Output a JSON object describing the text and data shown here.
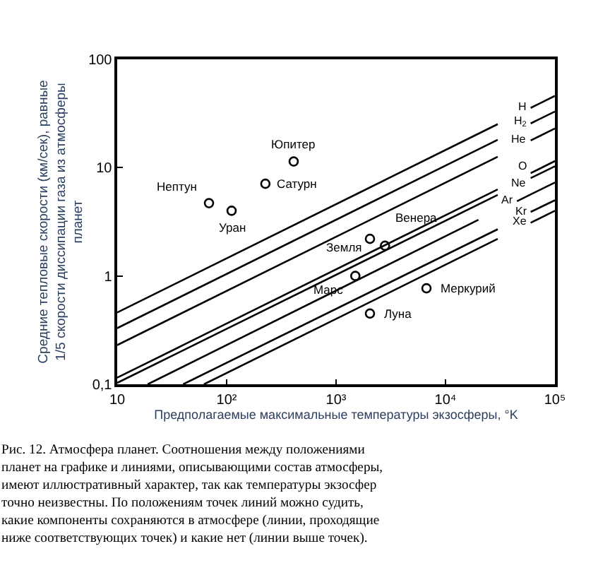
{
  "chart_data": {
    "type": "line",
    "xlabel": "Предполагаемые максимальные температуры экзосферы, °K",
    "ylabel": "Средние тепловые скорости (км/сек), равные 1/5 скорости диссипации газа из атмосферы планет",
    "log": "xy",
    "grid": false,
    "legend": false,
    "line_style": "solid",
    "xlim": [
      10,
      100000
    ],
    "ylim": [
      0.1,
      100
    ],
    "xticks": [
      {
        "value": 10,
        "label": "10"
      },
      {
        "value": 100,
        "label": "10²"
      },
      {
        "value": 1000,
        "label": "10³"
      },
      {
        "value": 10000,
        "label": "10⁴"
      },
      {
        "value": 100000,
        "label": "10⁵"
      }
    ],
    "yticks": [
      {
        "value": 0.1,
        "label": "0,1"
      },
      1,
      10,
      100
    ],
    "series": [
      {
        "name": "H",
        "color": "#000000",
        "x": [
          10,
          30000,
          null,
          60000,
          100000
        ],
        "values": [
          0.46,
          25.2,
          null,
          35.6,
          46
        ]
      },
      {
        "name": "H$_{2}$",
        "color": "#000000",
        "x": [
          10,
          30000,
          null,
          60000,
          100000
        ],
        "values": [
          0.33,
          18.1,
          null,
          25.6,
          33
        ]
      },
      {
        "name": "He",
        "color": "#000000",
        "x": [
          10,
          30000,
          null,
          60000,
          100000
        ],
        "values": [
          0.23,
          12.6,
          null,
          17.8,
          23
        ]
      },
      {
        "name": "O",
        "color": "#000000",
        "x": [
          10,
          30000,
          null,
          60000,
          100000
        ],
        "values": [
          0.115,
          6.3,
          null,
          8.9,
          11.5
        ]
      },
      {
        "name": "Ne",
        "color": "#000000",
        "x": [
          10,
          30000,
          null,
          60000,
          100000
        ],
        "values": [
          0.103,
          5.6,
          null,
          8.0,
          10.3
        ]
      },
      {
        "name": "Ar",
        "color": "#000000",
        "x": [
          19,
          20000,
          null,
          45000,
          100000
        ],
        "values": [
          0.1,
          3.3,
          null,
          4.9,
          7.3
        ]
      },
      {
        "name": "Kr",
        "color": "#000000",
        "x": [
          40,
          30000,
          null,
          60000,
          100000
        ],
        "values": [
          0.1,
          2.7,
          null,
          3.9,
          5.0
        ]
      },
      {
        "name": "Xe",
        "color": "#000000",
        "x": [
          62,
          30000,
          null,
          60000,
          100000
        ],
        "values": [
          0.1,
          2.2,
          null,
          3.1,
          4.0
        ]
      },
      {
        "type": "scatter",
        "marker": "circle",
        "color": "#000000",
        "x": [
          410,
          226,
          69,
          111,
          2040,
          2800,
          1500,
          6700,
          2040
        ],
        "values": [
          11.4,
          7.1,
          4.7,
          4.0,
          2.2,
          1.9,
          1.0,
          0.77,
          0.45
        ]
      }
    ],
    "annotations": [
      {
        "text": "Юпитер",
        "x": 410,
        "y": 11.4
      },
      {
        "text": "Сатурн",
        "x": 226,
        "y": 7.1
      },
      {
        "text": "Нептун",
        "x": 69,
        "y": 4.7
      },
      {
        "text": "Уран",
        "x": 111,
        "y": 4.0
      },
      {
        "text": "Земля",
        "x": 2040,
        "y": 2.2
      },
      {
        "text": "Венера",
        "x": 2800,
        "y": 1.9
      },
      {
        "text": "Марс",
        "x": 1500,
        "y": 1.0
      },
      {
        "text": "Меркурий",
        "x": 6700,
        "y": 0.77
      },
      {
        "text": "Луна",
        "x": 2040,
        "y": 0.45
      },
      "Рис. 12. Атмосфера планет. Соотношения между положениями\nпланет на графике и линиями, описывающими состав атмосферы,\nимеют иллюстративный характер, так как температуры экзосфер\nточно неизвестны. По положениям точек линий можно судить,\nкакие компоненты сохраняются в атмосфере (линии, проходящие\nниже соответствующих точек) и какие нет (линии выше точек)."
    ]
  }
}
